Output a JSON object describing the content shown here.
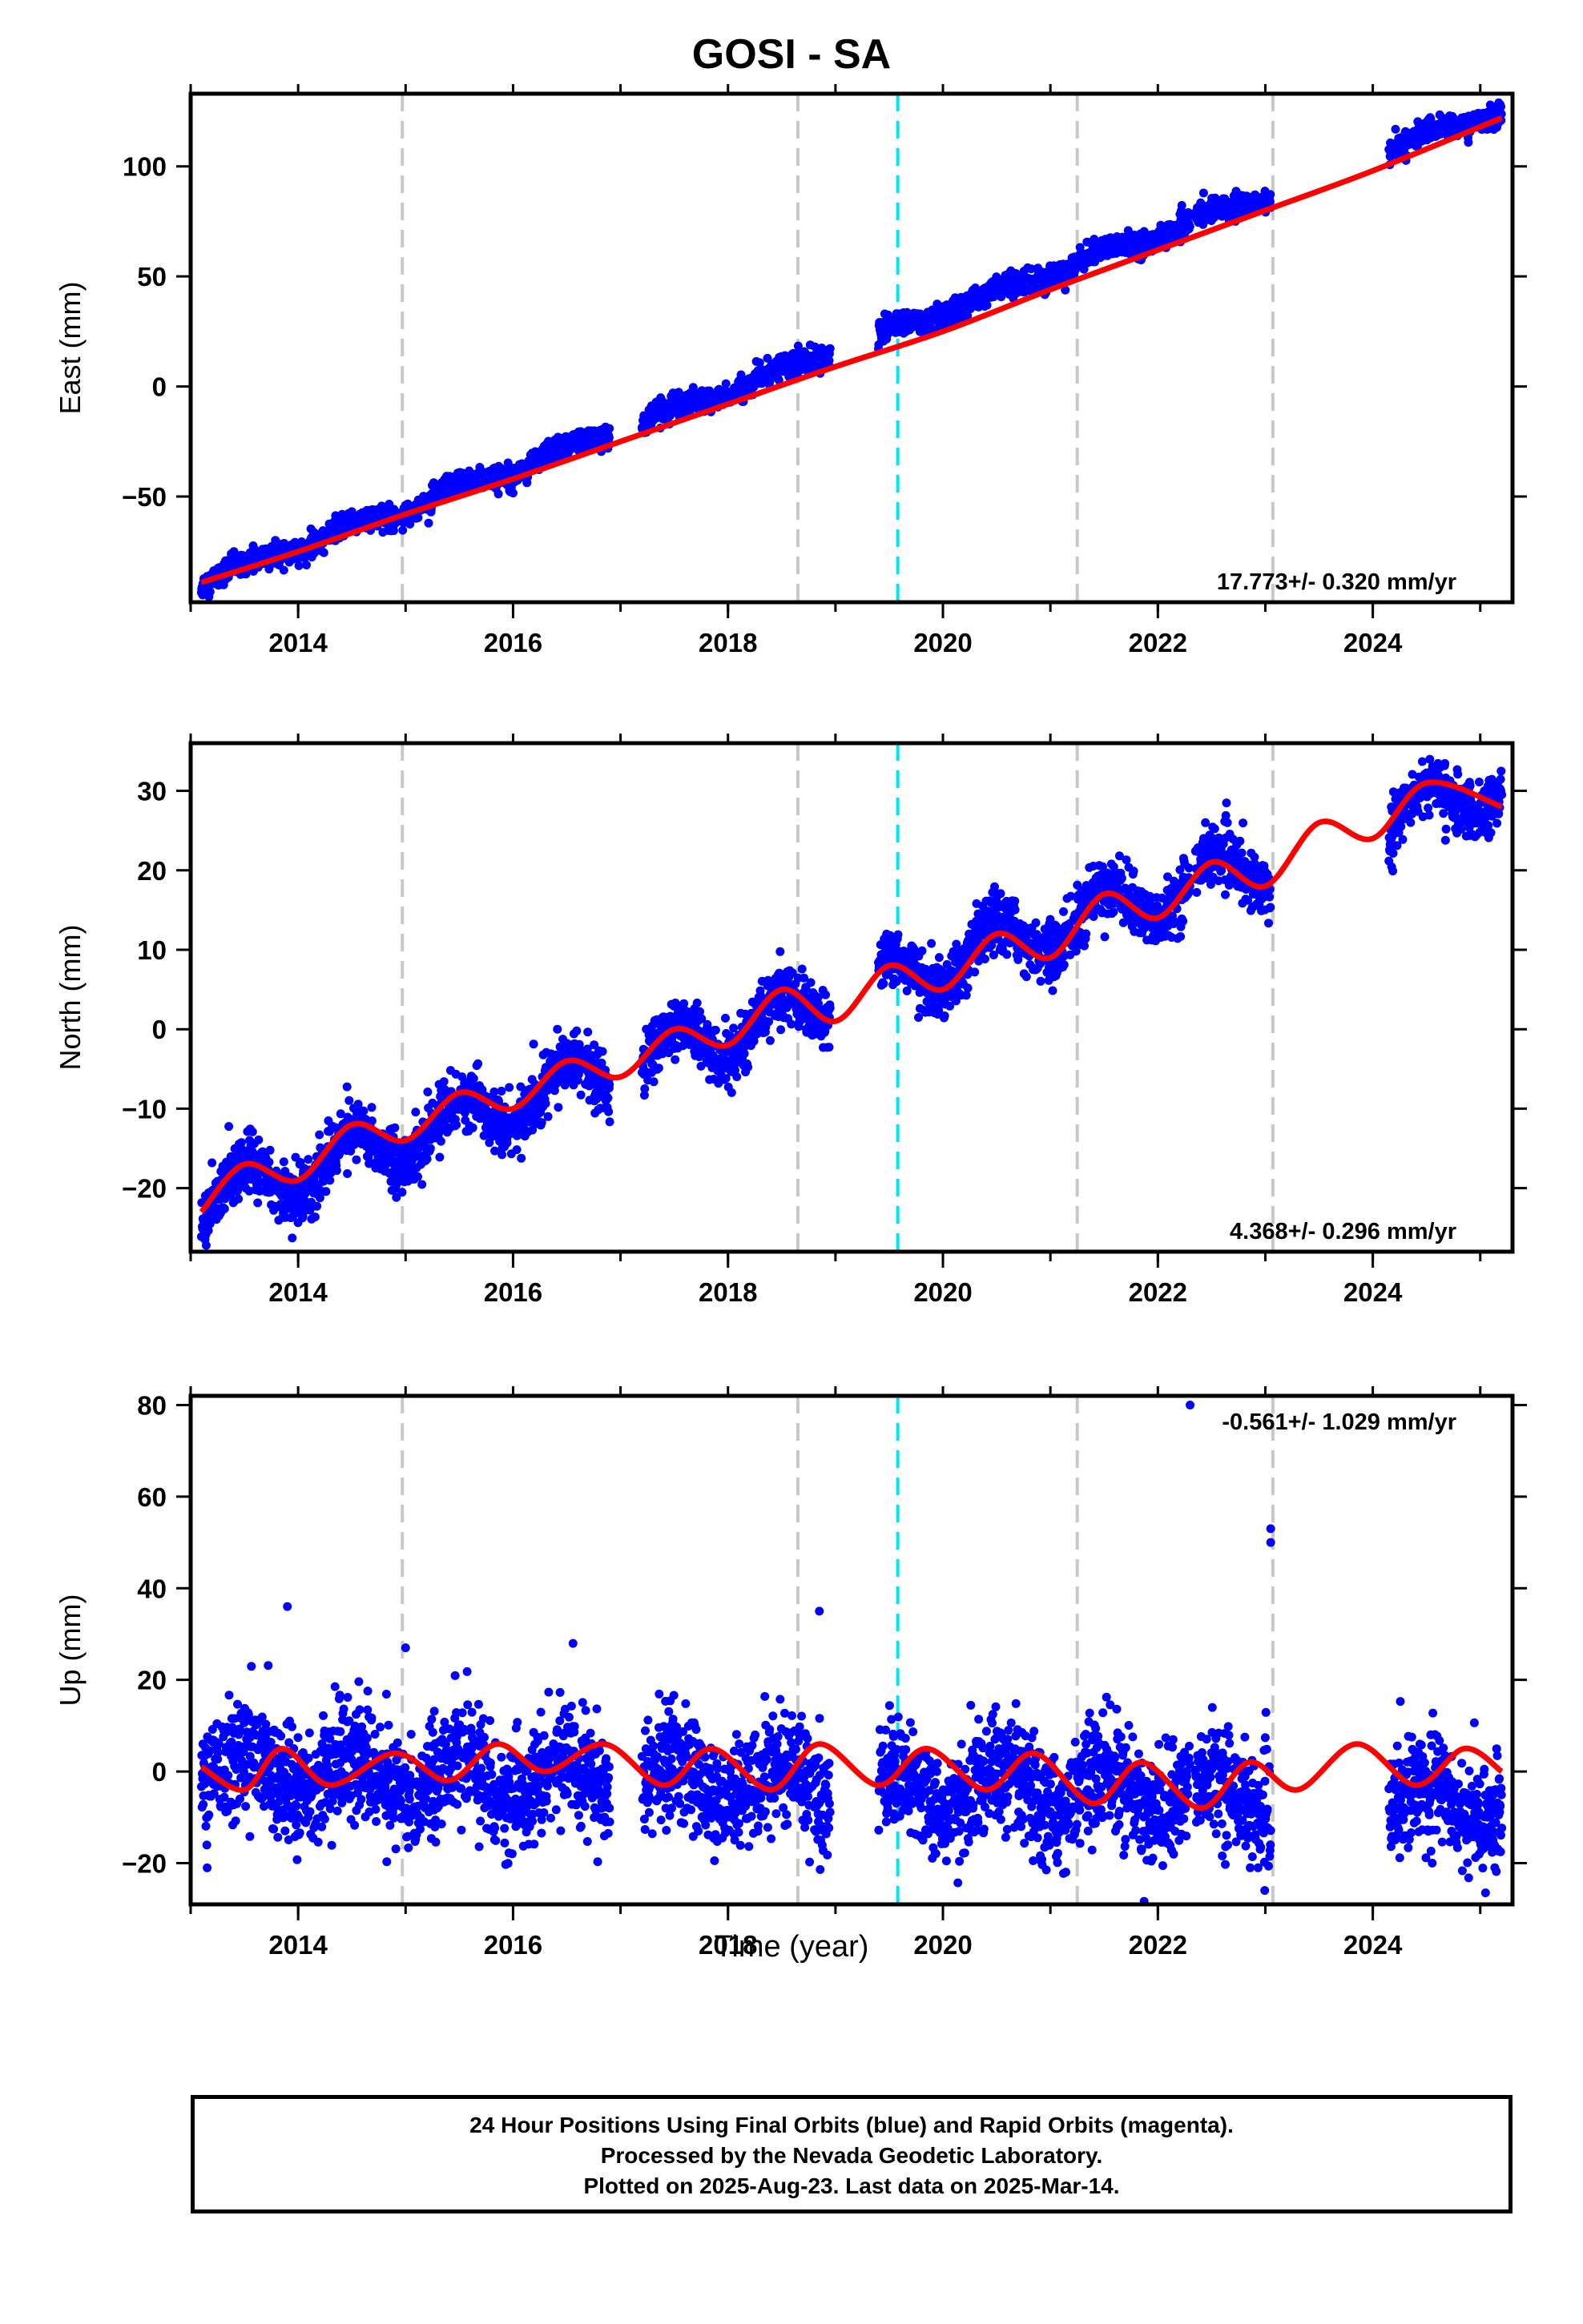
{
  "title": "GOSI - SA",
  "xlabel": "Time (year)",
  "footer": {
    "line1": "24 Hour Positions Using Final Orbits (blue) and Rapid Orbits (magenta).",
    "line2": "Processed by the Nevada Geodetic Laboratory.",
    "line3": "Plotted on 2025-Aug-23. Last data on 2025-Mar-14."
  },
  "colors": {
    "points": "#0000ff",
    "model": "#ff0000",
    "event_lines": "#c8c8c8",
    "equipment_line": "#00e5ff"
  },
  "chart_data": [
    {
      "type": "scatter",
      "id": "east",
      "ylabel": "East (mm)",
      "xlim": [
        2013.0,
        2025.3
      ],
      "ylim": [
        -98,
        133
      ],
      "yticks": [
        -50,
        0,
        50,
        100
      ],
      "xticks": [
        2014,
        2016,
        2018,
        2020,
        2022,
        2024
      ],
      "rate_label": "17.773+/- 0.320 mm/yr",
      "rate_position": "bottom-right",
      "vlines_gray": [
        2014.97,
        2018.65,
        2021.25,
        2023.07
      ],
      "vlines_cyan": [
        2019.58
      ],
      "data_segments": [
        [
          2013.1,
          2016.9
        ],
        [
          2017.2,
          2018.95
        ],
        [
          2019.4,
          2022.3
        ],
        [
          2022.35,
          2023.05
        ],
        [
          2024.15,
          2025.2
        ]
      ],
      "series": [
        {
          "name": "Final Orbits",
          "style": "points",
          "trend": {
            "t0": 2013.1,
            "v0": -89,
            "rate": 17.773
          },
          "seasonal_amp": 2.5,
          "noise": 2.5
        },
        {
          "name": "model",
          "style": "line",
          "x": [
            2013.1,
            2014.0,
            2015.0,
            2016.0,
            2017.0,
            2018.0,
            2019.0,
            2020.0,
            2021.0,
            2022.0,
            2023.0,
            2024.0,
            2025.2
          ],
          "y": [
            -89,
            -75,
            -58,
            -42,
            -25,
            -8,
            9,
            25,
            44,
            62,
            80,
            98,
            122
          ]
        }
      ]
    },
    {
      "type": "scatter",
      "id": "north",
      "ylabel": "North (mm)",
      "xlim": [
        2013.0,
        2025.3
      ],
      "ylim": [
        -28,
        36
      ],
      "yticks": [
        -20,
        -10,
        0,
        10,
        20,
        30
      ],
      "xticks": [
        2014,
        2016,
        2018,
        2020,
        2022,
        2024
      ],
      "rate_label": "4.368+/- 0.296 mm/yr",
      "rate_position": "bottom-right",
      "vlines_gray": [
        2014.97,
        2018.65,
        2021.25,
        2023.07
      ],
      "vlines_cyan": [
        2019.58
      ],
      "data_segments": [
        [
          2013.1,
          2016.9
        ],
        [
          2017.2,
          2018.95
        ],
        [
          2019.4,
          2022.3
        ],
        [
          2022.35,
          2023.05
        ],
        [
          2024.15,
          2025.2
        ]
      ],
      "series": [
        {
          "name": "Final Orbits",
          "style": "points",
          "trend": {
            "t0": 2013.1,
            "v0": -22,
            "rate": 4.368
          },
          "seasonal_amp": 3.0,
          "noise": 1.8
        },
        {
          "name": "model",
          "style": "line",
          "x": [
            2013.1,
            2013.5,
            2014.0,
            2014.5,
            2015.0,
            2015.5,
            2016.0,
            2016.5,
            2017.0,
            2017.5,
            2018.0,
            2018.5,
            2019.0,
            2019.5,
            2020.0,
            2020.5,
            2021.0,
            2021.5,
            2022.0,
            2022.5,
            2023.0,
            2023.5,
            2024.0,
            2024.5,
            2025.2
          ],
          "y": [
            -23,
            -17,
            -19,
            -12,
            -14,
            -8,
            -10,
            -4,
            -6,
            0,
            -2,
            5,
            1,
            8,
            5,
            12,
            9,
            17,
            14,
            21,
            18,
            26,
            24,
            31,
            28
          ]
        }
      ]
    },
    {
      "type": "scatter",
      "id": "up",
      "ylabel": "Up (mm)",
      "xlim": [
        2013.0,
        2025.3
      ],
      "ylim": [
        -29,
        82
      ],
      "yticks": [
        -20,
        0,
        20,
        40,
        60,
        80
      ],
      "xticks": [
        2014,
        2016,
        2018,
        2020,
        2022,
        2024
      ],
      "rate_label": "-0.561+/- 1.029 mm/yr",
      "rate_position": "top-right",
      "vlines_gray": [
        2014.97,
        2018.65,
        2021.25,
        2023.07
      ],
      "vlines_cyan": [
        2019.58
      ],
      "data_segments": [
        [
          2013.1,
          2016.9
        ],
        [
          2017.2,
          2018.95
        ],
        [
          2019.4,
          2022.3
        ],
        [
          2022.35,
          2023.05
        ],
        [
          2024.15,
          2025.2
        ]
      ],
      "series": [
        {
          "name": "Final Orbits",
          "style": "points",
          "trend": {
            "t0": 2013.1,
            "v0": 0,
            "rate": -0.561
          },
          "seasonal_amp": 4.5,
          "noise": 6.0
        },
        {
          "name": "outliers",
          "style": "points",
          "x": [
            2013.9,
            2015.0,
            2018.85,
            2022.3,
            2023.05,
            2023.05
          ],
          "y": [
            36,
            27,
            35,
            80,
            53,
            50
          ]
        },
        {
          "name": "model",
          "style": "line",
          "x": [
            2013.1,
            2013.5,
            2013.85,
            2014.3,
            2014.9,
            2015.4,
            2015.85,
            2016.3,
            2016.85,
            2017.4,
            2017.85,
            2018.4,
            2018.85,
            2019.4,
            2019.85,
            2020.4,
            2020.85,
            2021.4,
            2021.85,
            2022.4,
            2022.85,
            2023.3,
            2023.85,
            2024.4,
            2024.85,
            2025.2
          ],
          "y": [
            1,
            -4,
            5,
            -3,
            4,
            -2,
            6,
            0,
            6,
            -3,
            5,
            -4,
            6,
            -3,
            5,
            -4,
            4,
            -7,
            2,
            -8,
            2,
            -4,
            6,
            -3,
            5,
            0
          ]
        }
      ]
    }
  ]
}
